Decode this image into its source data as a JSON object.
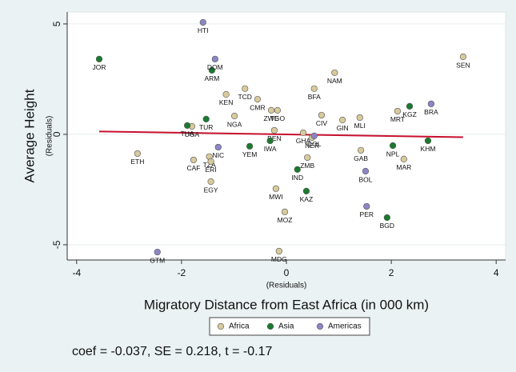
{
  "chart_data": {
    "type": "scatter",
    "y_title": "Average Height",
    "y_subtitle": "(Residuals)",
    "x_title": "Migratory Distance from East Africa (in 000 km)",
    "x_subtitle": "(Residuals)",
    "note": "coef = -0.037, SE = 0.218, t = -0.17",
    "xlim": [
      -4.18,
      4.18
    ],
    "ylim": [
      -5.69,
      5.54
    ],
    "xticks": [
      -4,
      -2,
      0,
      2,
      4
    ],
    "yticks": [
      -5,
      0,
      5
    ],
    "grid": true,
    "legend": "bottom",
    "fit": {
      "color": "#c8102e",
      "x": [
        -3.57,
        3.37
      ],
      "values": [
        0.13,
        -0.13
      ]
    },
    "series": [
      {
        "name": "Africa",
        "color": "#d8ca9c",
        "labels": [
          "SEN",
          "NAM",
          "BFA",
          "TCD",
          "KEN",
          "CMR",
          "ZWE",
          "TGO",
          "NGA",
          "CIV",
          "GIN",
          "MLI",
          "MRT",
          "UGA",
          "GHA",
          "BEN",
          "NER",
          "ETH",
          "CAF",
          "TZA",
          "ERI",
          "GAB",
          "ZMB",
          "EGY",
          "MAR",
          "MWI",
          "MOZ",
          "MDG"
        ],
        "x": [
          3.37,
          0.92,
          0.53,
          -0.79,
          -1.15,
          -0.55,
          -0.29,
          -0.17,
          -0.99,
          0.67,
          1.07,
          1.4,
          2.12,
          -1.8,
          0.32,
          -0.23,
          0.49,
          -2.84,
          -1.77,
          -1.47,
          -1.44,
          1.42,
          0.4,
          -1.44,
          2.24,
          -0.2,
          -0.03,
          -0.14
        ],
        "values": [
          3.51,
          2.79,
          2.07,
          2.07,
          1.81,
          1.59,
          1.09,
          1.09,
          0.83,
          0.87,
          0.65,
          0.76,
          1.05,
          0.36,
          0.07,
          0.18,
          -0.14,
          -0.87,
          -1.16,
          -1.01,
          -1.23,
          -0.72,
          -1.05,
          -2.14,
          -1.12,
          -2.46,
          -3.51,
          -5.29
        ]
      },
      {
        "name": "Asia",
        "color": "#1a7a2e",
        "labels": [
          "JOR",
          "ARM",
          "TUR",
          "THA",
          "YEM",
          "IWA",
          "IND",
          "KAZ",
          "KGZ",
          "NPL",
          "KHM",
          "BGD"
        ],
        "x": [
          -3.57,
          -1.42,
          -1.53,
          -1.89,
          -0.7,
          -0.31,
          0.21,
          0.38,
          2.35,
          2.03,
          2.7,
          1.92
        ],
        "values": [
          3.41,
          2.9,
          0.69,
          0.4,
          -0.54,
          -0.29,
          -1.59,
          -2.57,
          1.27,
          -0.51,
          -0.29,
          -3.77
        ]
      },
      {
        "name": "Americas",
        "color": "#8c86c6",
        "labels": [
          "HTI",
          "DOM",
          "BRA",
          "NIC",
          "BOL",
          "PER",
          "GTM",
          "COL"
        ],
        "x": [
          -1.59,
          -1.36,
          2.76,
          -1.3,
          1.51,
          1.53,
          -2.46,
          0.53
        ],
        "values": [
          5.07,
          3.41,
          1.38,
          -0.58,
          -1.67,
          -3.26,
          -5.33,
          -0.07
        ]
      }
    ]
  }
}
